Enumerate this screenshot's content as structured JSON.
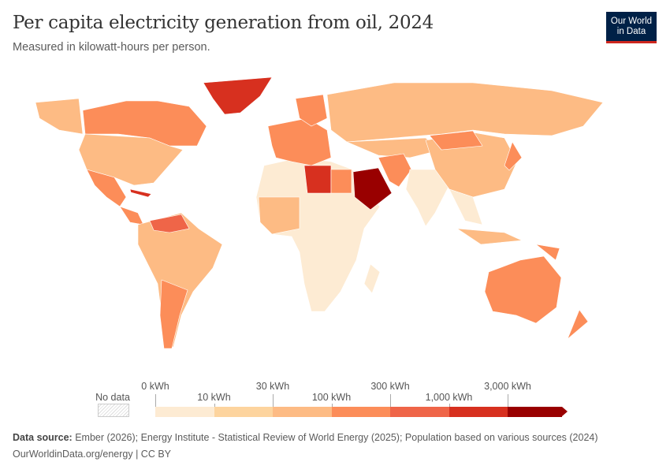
{
  "header": {
    "title": "Per capita electricity generation from oil, 2024",
    "subtitle": "Measured in kilowatt-hours per person.",
    "logo_line1": "Our World",
    "logo_line2": "in Data"
  },
  "chart_data": {
    "type": "map",
    "title": "Per capita electricity generation from oil, 2024",
    "subtitle": "Measured in kilowatt-hours per person.",
    "unit": "kWh",
    "legend": {
      "no_data_label": "No data",
      "bins": [
        {
          "from": "0 kWh",
          "to": "10 kWh",
          "color": "#fdebd3"
        },
        {
          "from": "10 kWh",
          "to": "30 kWh",
          "color": "#fdd49e"
        },
        {
          "from": "30 kWh",
          "to": "100 kWh",
          "color": "#fdbb84"
        },
        {
          "from": "100 kWh",
          "to": "300 kWh",
          "color": "#fc8d59"
        },
        {
          "from": "300 kWh",
          "to": "1,000 kWh",
          "color": "#ef6548"
        },
        {
          "from": "1,000 kWh",
          "to": "3,000 kWh",
          "color": "#d7301f"
        },
        {
          "from": "3,000 kWh",
          "to": "",
          "color": "#990000"
        }
      ],
      "tick_labels": [
        "0 kWh",
        "10 kWh",
        "30 kWh",
        "100 kWh",
        "300 kWh",
        "1,000 kWh",
        "3,000 kWh"
      ]
    },
    "regions": [
      {
        "name": "Greenland",
        "bin": "1,000–3,000 kWh"
      },
      {
        "name": "Canada",
        "bin": "100–300 kWh"
      },
      {
        "name": "Alaska",
        "bin": "30–100 kWh"
      },
      {
        "name": "United States",
        "bin": "30–100 kWh"
      },
      {
        "name": "Mexico",
        "bin": "100–300 kWh"
      },
      {
        "name": "Central America",
        "bin": "100–300 kWh"
      },
      {
        "name": "Cuba",
        "bin": "1,000–3,000 kWh"
      },
      {
        "name": "South America",
        "bin": "30–100 kWh"
      },
      {
        "name": "Venezuela",
        "bin": "300–1,000 kWh"
      },
      {
        "name": "Argentina/Chile",
        "bin": "100–300 kWh"
      },
      {
        "name": "Europe",
        "bin": "100–300 kWh"
      },
      {
        "name": "Scandinavia",
        "bin": "100–300 kWh"
      },
      {
        "name": "Russia",
        "bin": "30–100 kWh"
      },
      {
        "name": "Africa",
        "bin": "0–10 kWh"
      },
      {
        "name": "West Africa",
        "bin": "30–100 kWh"
      },
      {
        "name": "Libya",
        "bin": "1,000–3,000 kWh"
      },
      {
        "name": "Egypt",
        "bin": "100–300 kWh"
      },
      {
        "name": "Saudi Arabia",
        "bin": ">3,000 kWh"
      },
      {
        "name": "Iran",
        "bin": "100–300 kWh"
      },
      {
        "name": "Central Asia",
        "bin": "30–100 kWh"
      },
      {
        "name": "India",
        "bin": "0–10 kWh"
      },
      {
        "name": "China",
        "bin": "30–100 kWh"
      },
      {
        "name": "Mongolia",
        "bin": "100–300 kWh"
      },
      {
        "name": "Southeast Asia",
        "bin": "0–10 kWh"
      },
      {
        "name": "Japan",
        "bin": "100–300 kWh"
      },
      {
        "name": "Indonesia",
        "bin": "30–100 kWh"
      },
      {
        "name": "Papua New Guinea",
        "bin": "100–300 kWh"
      },
      {
        "name": "Australia",
        "bin": "100–300 kWh"
      },
      {
        "name": "New Zealand",
        "bin": "100–300 kWh"
      },
      {
        "name": "Madagascar",
        "bin": "0–10 kWh"
      }
    ]
  },
  "footer": {
    "source_label": "Data source:",
    "source_text": "Ember (2026); Energy Institute - Statistical Review of World Energy (2025); Population based on various sources (2024)",
    "url": "OurWorldinData.org/energy | CC BY"
  }
}
